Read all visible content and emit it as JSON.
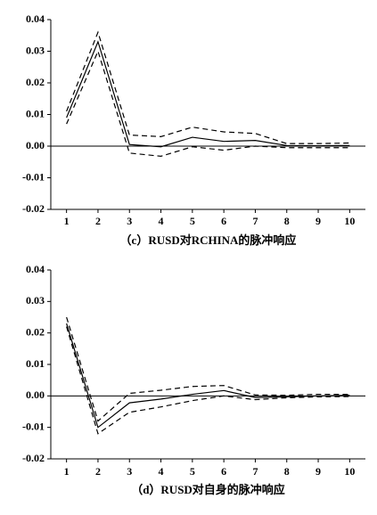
{
  "chart_data": [
    {
      "type": "line",
      "title": "（c）RUSD对RCHINA的脉冲响应",
      "x": [
        1,
        2,
        3,
        4,
        5,
        6,
        7,
        8,
        9,
        10
      ],
      "xlim": [
        0.5,
        10.5
      ],
      "xticks": [
        1,
        2,
        3,
        4,
        5,
        6,
        7,
        8,
        9,
        10
      ],
      "ylim": [
        -0.02,
        0.04
      ],
      "yticks": [
        0.04,
        0.03,
        0.02,
        0.01,
        {
          "value": 0,
          "label": "0.00"
        },
        -0.01,
        -0.02
      ],
      "zero_line": true,
      "series": [
        {
          "color": "#000000",
          "dashed": false,
          "values": [
            0.009,
            0.033,
            0.0005,
            -0.0002,
            0.0028,
            0.0015,
            0.0018,
            0.0002,
            0.0001,
            0.0002
          ]
        },
        {
          "color": "#000000",
          "dashed": true,
          "values": [
            0.011,
            0.036,
            0.0035,
            0.003,
            0.006,
            0.0045,
            0.004,
            0.0008,
            0.0008,
            0.001
          ]
        },
        {
          "color": "#000000",
          "dashed": true,
          "values": [
            0.007,
            0.03,
            -0.0022,
            -0.0032,
            -0.0002,
            -0.0013,
            0.0,
            -0.0005,
            -0.0005,
            -0.0005
          ]
        }
      ]
    },
    {
      "type": "line",
      "title": "（d）RUSD对自身的脉冲响应",
      "x": [
        1,
        2,
        3,
        4,
        5,
        6,
        7,
        8,
        9,
        10
      ],
      "xlim": [
        0.5,
        10.5
      ],
      "xticks": [
        1,
        2,
        3,
        4,
        5,
        6,
        7,
        8,
        9,
        10
      ],
      "ylim": [
        -0.02,
        0.04
      ],
      "yticks": [
        0.04,
        0.03,
        0.02,
        0.01,
        {
          "value": 0,
          "label": "0.00"
        },
        -0.01,
        -0.02
      ],
      "zero_line": true,
      "series": [
        {
          "color": "#000000",
          "dashed": false,
          "values": [
            0.023,
            -0.01,
            -0.0022,
            -0.001,
            0.0005,
            0.0017,
            -0.0005,
            -0.0003,
            0.0,
            0.0002
          ]
        },
        {
          "color": "#000000",
          "dashed": true,
          "values": [
            0.025,
            -0.008,
            0.0008,
            0.0018,
            0.003,
            0.0033,
            0.0003,
            0.0002,
            0.0005,
            0.0005
          ]
        },
        {
          "color": "#000000",
          "dashed": true,
          "values": [
            0.022,
            -0.012,
            -0.0052,
            -0.0035,
            -0.0015,
            0.0,
            -0.0012,
            -0.0006,
            -0.0003,
            -0.0002
          ]
        }
      ]
    }
  ]
}
